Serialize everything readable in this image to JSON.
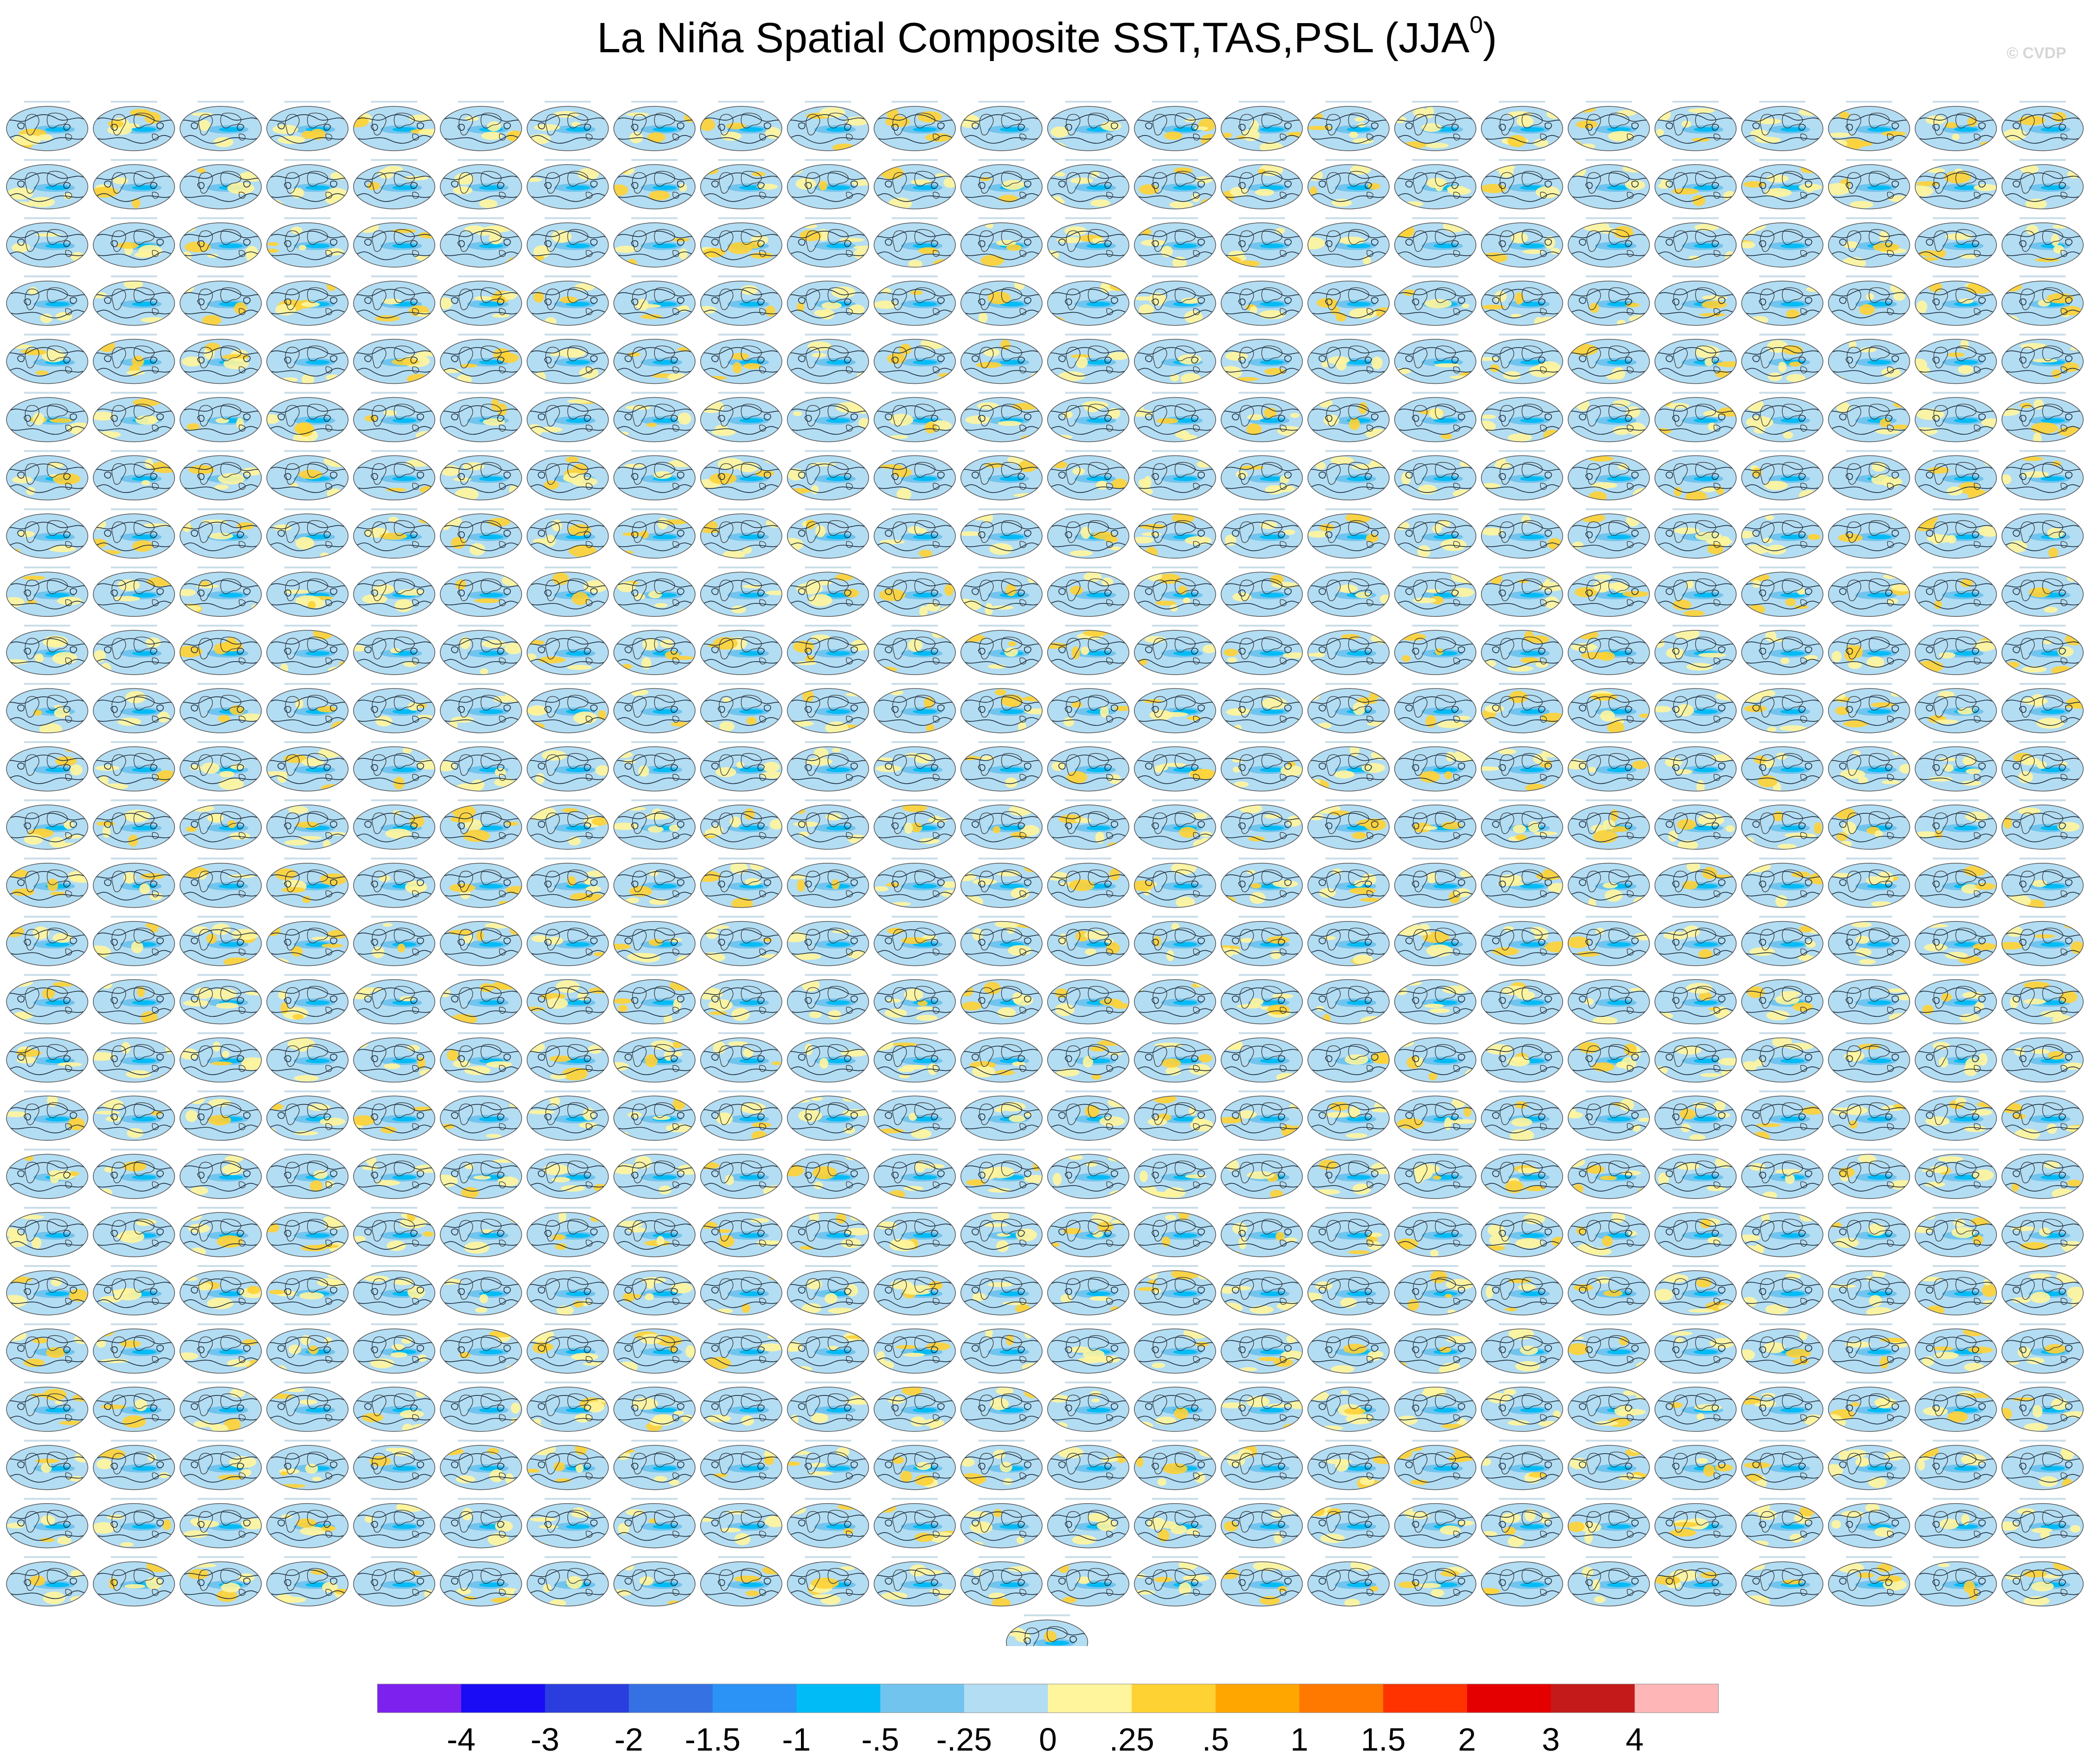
{
  "chart_data": {
    "type": "panel_grid",
    "title_main": "La Niña Spatial Composite SST,TAS,PSL (JJA",
    "title_sup": "0",
    "title_close": ")",
    "watermark": "© CVDP",
    "grid": {
      "columns": 24,
      "rows": 26,
      "extra_panels_last_row": 1
    },
    "colorbar": {
      "colors": [
        "#7d22ee",
        "#1a0df5",
        "#2a3ddf",
        "#3571e3",
        "#2b93f5",
        "#00bbf5",
        "#70c4ed",
        "#b3ddf2",
        "#fff59c",
        "#ffd233",
        "#ffa600",
        "#ff7800",
        "#ff3300",
        "#e50000",
        "#c41a1a",
        "#ffb6b6"
      ],
      "labels": [
        "-4",
        "-3",
        "-2",
        "-1.5",
        "-1",
        "-.5",
        "-.25",
        "0",
        ".25",
        ".5",
        "1",
        "1.5",
        "2",
        "3",
        "4"
      ]
    },
    "map_palette": {
      "ocean_cool": "#b3ddf2",
      "ocean_mid": "#70c4ed",
      "ocean_cold": "#00bbf5",
      "warm": "#fff59c",
      "warmer": "#ffd233",
      "contour": "#1a2a3a"
    }
  }
}
